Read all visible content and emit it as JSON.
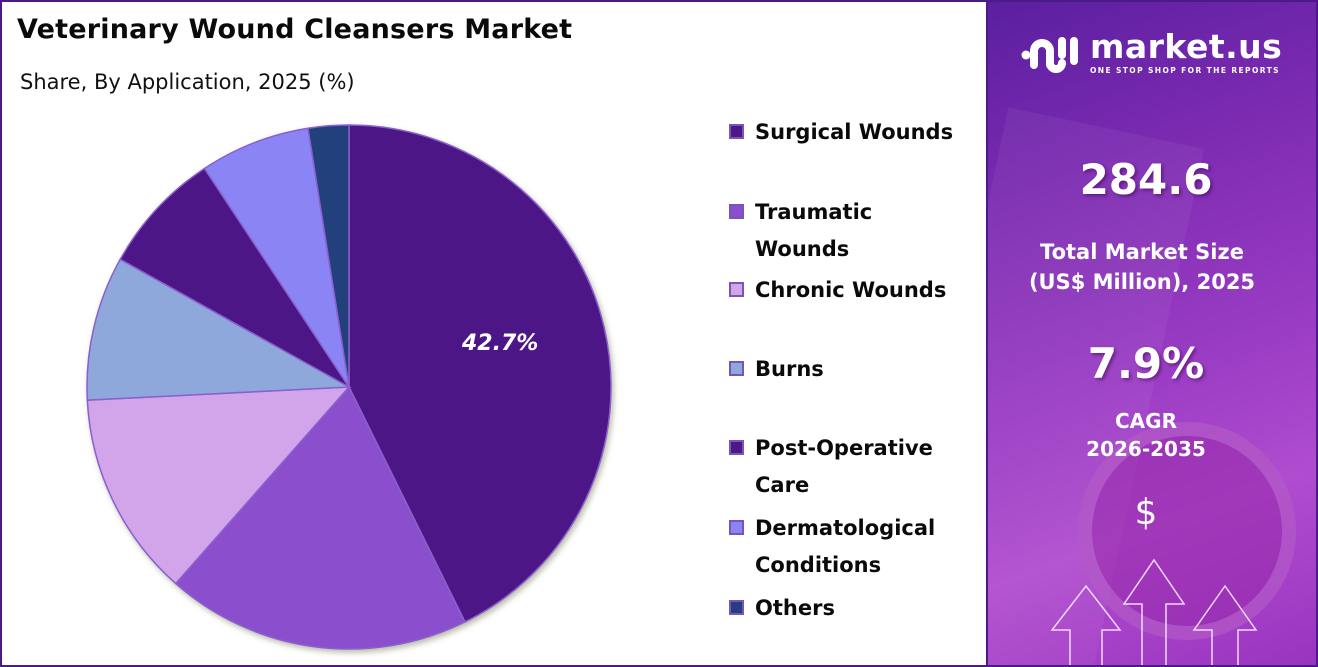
{
  "header": {
    "title": "Veterinary Wound Cleansers Market",
    "subtitle": "Share, By Application, 2025 (%)"
  },
  "pie": {
    "highlight_label": "42.7%"
  },
  "legend": [
    {
      "label": "Surgical Wounds",
      "color": "#4e1786"
    },
    {
      "label": "Traumatic Wounds",
      "color": "#8b4fcd"
    },
    {
      "label": "Chronic Wounds",
      "color": "#d2a5ea"
    },
    {
      "label": "Burns",
      "color": "#8ea8dc"
    },
    {
      "label": "Post-Operative Care",
      "color": "#4e1786"
    },
    {
      "label": "Dermatological Conditions",
      "color": "#8a84f5"
    },
    {
      "label": "Others",
      "color": "#243f7c"
    }
  ],
  "sidebar": {
    "brand_name": "market.us",
    "brand_tagline": "ONE STOP SHOP FOR THE REPORTS",
    "market_size_value": "284.6",
    "market_size_label_line1": "Total Market Size",
    "market_size_label_line2": "(US$ Million), 2025",
    "cagr_value": "7.9%",
    "cagr_label_line1": "CAGR",
    "cagr_label_line2": "2026-2035",
    "currency_symbol": "$"
  },
  "chart_data": {
    "type": "pie",
    "title": "Veterinary Wound Cleansers Market",
    "subtitle": "Share, By Application, 2025 (%)",
    "categories": [
      "Surgical Wounds",
      "Traumatic Wounds",
      "Chronic Wounds",
      "Burns",
      "Post-Operative Care",
      "Dermatological Conditions",
      "Others"
    ],
    "values": [
      42.7,
      18.8,
      12.7,
      8.9,
      7.6,
      6.8,
      2.5
    ],
    "colors": [
      "#4e1786",
      "#8b4fcd",
      "#d2a5ea",
      "#8ea8dc",
      "#4e1786",
      "#8a84f5",
      "#243f7c"
    ],
    "data_labels": {
      "Surgical Wounds": "42.7%"
    },
    "legend_position": "right",
    "start_angle": "12 o'clock, clockwise"
  }
}
